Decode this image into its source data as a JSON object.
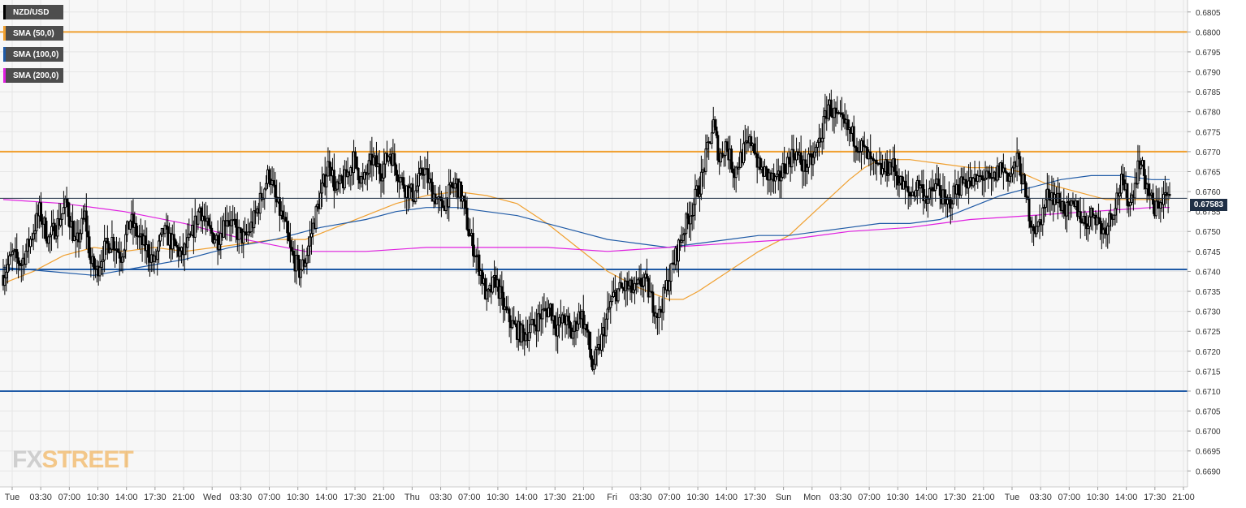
{
  "legend": [
    {
      "label": "NZD/USD",
      "color": "#000000"
    },
    {
      "label": "SMA (50,0)",
      "color": "#f0a030"
    },
    {
      "label": "SMA (100,0)",
      "color": "#1f5aa6"
    },
    {
      "label": "SMA (200,0)",
      "color": "#e020e0"
    }
  ],
  "price_tag": "0.67583",
  "watermark": {
    "prefix": "FX",
    "suffix": "STREET"
  },
  "chart_data": {
    "type": "candlestick",
    "symbol": "NZD/USD",
    "last_price": 0.67583,
    "ylim": [
      0.6686,
      0.6808
    ],
    "y_ticks": [
      "0.6690",
      "0.6695",
      "0.6700",
      "0.6705",
      "0.6710",
      "0.6715",
      "0.6720",
      "0.6725",
      "0.6730",
      "0.6735",
      "0.6740",
      "0.6745",
      "0.6750",
      "0.6755",
      "0.6760",
      "0.6765",
      "0.6770",
      "0.6775",
      "0.6780",
      "0.6785",
      "0.6790",
      "0.6795",
      "0.6800",
      "0.6805"
    ],
    "x_ticks": [
      "Tue",
      "03:30",
      "07:00",
      "10:30",
      "14:00",
      "17:30",
      "21:00",
      "Wed",
      "03:30",
      "07:00",
      "10:30",
      "14:00",
      "17:30",
      "21:00",
      "Thu",
      "03:30",
      "07:00",
      "10:30",
      "14:00",
      "17:30",
      "21:00",
      "Fri",
      "03:30",
      "07:00",
      "10:30",
      "14:00",
      "17:30",
      "Sun",
      "Mon",
      "03:30",
      "07:00",
      "10:30",
      "14:00",
      "17:30",
      "21:00",
      "Tue",
      "03:30",
      "07:00",
      "10:30",
      "14:00",
      "17:30",
      "21:00"
    ],
    "horizontal_levels": [
      {
        "value": 0.68,
        "color": "#f0a030"
      },
      {
        "value": 0.677,
        "color": "#f0a030"
      },
      {
        "value": 0.67405,
        "color": "#1f5aa6"
      },
      {
        "value": 0.671,
        "color": "#1f5aa6"
      }
    ],
    "close_path": [
      [
        0,
        0.6739
      ],
      [
        6,
        0.6744
      ],
      [
        12,
        0.6742
      ],
      [
        18,
        0.6748
      ],
      [
        24,
        0.6755
      ],
      [
        30,
        0.6748
      ],
      [
        36,
        0.6752
      ],
      [
        42,
        0.6757
      ],
      [
        48,
        0.6746
      ],
      [
        54,
        0.6754
      ],
      [
        58,
        0.6742
      ],
      [
        62,
        0.674
      ],
      [
        66,
        0.6745
      ],
      [
        72,
        0.6748
      ],
      [
        78,
        0.6744
      ],
      [
        84,
        0.6753
      ],
      [
        90,
        0.6748
      ],
      [
        96,
        0.6745
      ],
      [
        100,
        0.6742
      ],
      [
        106,
        0.675
      ],
      [
        112,
        0.6747
      ],
      [
        118,
        0.6744
      ],
      [
        124,
        0.6748
      ],
      [
        130,
        0.6756
      ],
      [
        136,
        0.675
      ],
      [
        142,
        0.6748
      ],
      [
        148,
        0.6754
      ],
      [
        154,
        0.675
      ],
      [
        160,
        0.6748
      ],
      [
        166,
        0.6753
      ],
      [
        172,
        0.676
      ],
      [
        176,
        0.6765
      ],
      [
        180,
        0.6758
      ],
      [
        186,
        0.6752
      ],
      [
        190,
        0.6745
      ],
      [
        196,
        0.674
      ],
      [
        200,
        0.6743
      ],
      [
        206,
        0.6753
      ],
      [
        212,
        0.6762
      ],
      [
        216,
        0.6768
      ],
      [
        220,
        0.676
      ],
      [
        226,
        0.6763
      ],
      [
        232,
        0.6768
      ],
      [
        238,
        0.6762
      ],
      [
        244,
        0.6768
      ],
      [
        250,
        0.6765
      ],
      [
        256,
        0.677
      ],
      [
        262,
        0.6764
      ],
      [
        266,
        0.6761
      ],
      [
        272,
        0.6759
      ],
      [
        278,
        0.6766
      ],
      [
        284,
        0.676
      ],
      [
        290,
        0.6756
      ],
      [
        296,
        0.676
      ],
      [
        300,
        0.6762
      ],
      [
        304,
        0.6758
      ],
      [
        308,
        0.675
      ],
      [
        312,
        0.6745
      ],
      [
        316,
        0.674
      ],
      [
        320,
        0.6733
      ],
      [
        326,
        0.6738
      ],
      [
        332,
        0.673
      ],
      [
        338,
        0.6726
      ],
      [
        344,
        0.6724
      ],
      [
        350,
        0.6726
      ],
      [
        356,
        0.6729
      ],
      [
        362,
        0.6731
      ],
      [
        366,
        0.6726
      ],
      [
        372,
        0.6728
      ],
      [
        376,
        0.6724
      ],
      [
        382,
        0.673
      ],
      [
        386,
        0.6725
      ],
      [
        390,
        0.6716
      ],
      [
        394,
        0.672
      ],
      [
        398,
        0.6726
      ],
      [
        402,
        0.6732
      ],
      [
        406,
        0.6735
      ],
      [
        412,
        0.6736
      ],
      [
        418,
        0.6735
      ],
      [
        424,
        0.6738
      ],
      [
        430,
        0.6732
      ],
      [
        434,
        0.6729
      ],
      [
        438,
        0.6735
      ],
      [
        442,
        0.674
      ],
      [
        446,
        0.6745
      ],
      [
        450,
        0.675
      ],
      [
        456,
        0.6756
      ],
      [
        462,
        0.6763
      ],
      [
        466,
        0.677
      ],
      [
        470,
        0.6777
      ],
      [
        474,
        0.6768
      ],
      [
        478,
        0.6772
      ],
      [
        484,
        0.6765
      ],
      [
        490,
        0.677
      ],
      [
        496,
        0.6773
      ],
      [
        500,
        0.6766
      ],
      [
        506,
        0.6764
      ],
      [
        512,
        0.6762
      ],
      [
        518,
        0.6767
      ],
      [
        524,
        0.677
      ],
      [
        530,
        0.6766
      ],
      [
        536,
        0.6768
      ],
      [
        542,
        0.6775
      ],
      [
        546,
        0.6782
      ],
      [
        552,
        0.6778
      ],
      [
        558,
        0.6776
      ],
      [
        564,
        0.6773
      ],
      [
        570,
        0.677
      ],
      [
        576,
        0.6766
      ],
      [
        582,
        0.6765
      ],
      [
        588,
        0.6767
      ],
      [
        594,
        0.6762
      ],
      [
        600,
        0.6759
      ],
      [
        606,
        0.6762
      ],
      [
        612,
        0.6758
      ],
      [
        618,
        0.6762
      ],
      [
        624,
        0.6756
      ],
      [
        630,
        0.676
      ],
      [
        636,
        0.6763
      ],
      [
        642,
        0.6762
      ],
      [
        648,
        0.6764
      ],
      [
        654,
        0.6762
      ],
      [
        660,
        0.6766
      ],
      [
        666,
        0.6764
      ],
      [
        672,
        0.6768
      ],
      [
        676,
        0.676
      ],
      [
        680,
        0.6753
      ],
      [
        684,
        0.675
      ],
      [
        688,
        0.6755
      ],
      [
        692,
        0.676
      ],
      [
        698,
        0.6758
      ],
      [
        704,
        0.6755
      ],
      [
        710,
        0.6756
      ],
      [
        716,
        0.6752
      ],
      [
        722,
        0.6755
      ],
      [
        728,
        0.675
      ],
      [
        734,
        0.6755
      ],
      [
        740,
        0.6762
      ],
      [
        746,
        0.6757
      ],
      [
        752,
        0.6768
      ],
      [
        758,
        0.676
      ],
      [
        762,
        0.6755
      ],
      [
        766,
        0.6758
      ],
      [
        770,
        0.6759
      ],
      [
        772,
        0.6758
      ]
    ],
    "series": [
      {
        "name": "SMA (50,0)",
        "color": "#f0a030",
        "points": [
          [
            0,
            0.6737
          ],
          [
            20,
            0.674
          ],
          [
            40,
            0.6744
          ],
          [
            60,
            0.6746
          ],
          [
            80,
            0.6745
          ],
          [
            100,
            0.6746
          ],
          [
            120,
            0.6745
          ],
          [
            140,
            0.6746
          ],
          [
            160,
            0.6747
          ],
          [
            180,
            0.6748
          ],
          [
            200,
            0.6748
          ],
          [
            220,
            0.6751
          ],
          [
            240,
            0.6754
          ],
          [
            260,
            0.6757
          ],
          [
            280,
            0.6759
          ],
          [
            300,
            0.676
          ],
          [
            320,
            0.6759
          ],
          [
            340,
            0.6757
          ],
          [
            360,
            0.6752
          ],
          [
            380,
            0.6746
          ],
          [
            400,
            0.674
          ],
          [
            420,
            0.6736
          ],
          [
            440,
            0.6733
          ],
          [
            450,
            0.6733
          ],
          [
            460,
            0.6735
          ],
          [
            480,
            0.674
          ],
          [
            500,
            0.6745
          ],
          [
            520,
            0.6749
          ],
          [
            540,
            0.6756
          ],
          [
            560,
            0.6763
          ],
          [
            570,
            0.6766
          ],
          [
            580,
            0.6768
          ],
          [
            600,
            0.6768
          ],
          [
            620,
            0.6767
          ],
          [
            640,
            0.6766
          ],
          [
            660,
            0.6766
          ],
          [
            672,
            0.6765
          ],
          [
            690,
            0.6762
          ],
          [
            710,
            0.676
          ],
          [
            730,
            0.6758
          ],
          [
            750,
            0.6758
          ],
          [
            772,
            0.6758
          ]
        ]
      },
      {
        "name": "SMA (100,0)",
        "color": "#1f5aa6",
        "points": [
          [
            0,
            0.6741
          ],
          [
            30,
            0.674
          ],
          [
            60,
            0.6739
          ],
          [
            90,
            0.6741
          ],
          [
            120,
            0.6743
          ],
          [
            150,
            0.6746
          ],
          [
            180,
            0.6748
          ],
          [
            210,
            0.6751
          ],
          [
            240,
            0.6753
          ],
          [
            260,
            0.6755
          ],
          [
            280,
            0.6756
          ],
          [
            300,
            0.6756
          ],
          [
            320,
            0.6755
          ],
          [
            340,
            0.6754
          ],
          [
            360,
            0.6752
          ],
          [
            380,
            0.675
          ],
          [
            400,
            0.6748
          ],
          [
            420,
            0.6747
          ],
          [
            440,
            0.6746
          ],
          [
            460,
            0.6747
          ],
          [
            480,
            0.6748
          ],
          [
            500,
            0.6749
          ],
          [
            520,
            0.6749
          ],
          [
            540,
            0.675
          ],
          [
            560,
            0.6751
          ],
          [
            580,
            0.6752
          ],
          [
            600,
            0.6752
          ],
          [
            620,
            0.6753
          ],
          [
            640,
            0.6756
          ],
          [
            660,
            0.6759
          ],
          [
            680,
            0.6761
          ],
          [
            700,
            0.6763
          ],
          [
            720,
            0.6764
          ],
          [
            740,
            0.6764
          ],
          [
            760,
            0.6763
          ],
          [
            772,
            0.6763
          ]
        ]
      },
      {
        "name": "SMA (200,0)",
        "color": "#e020e0",
        "points": [
          [
            0,
            0.6758
          ],
          [
            40,
            0.6757
          ],
          [
            80,
            0.6755
          ],
          [
            120,
            0.6752
          ],
          [
            160,
            0.6748
          ],
          [
            200,
            0.6745
          ],
          [
            240,
            0.6745
          ],
          [
            280,
            0.6746
          ],
          [
            320,
            0.6746
          ],
          [
            360,
            0.6746
          ],
          [
            400,
            0.6745
          ],
          [
            440,
            0.6746
          ],
          [
            480,
            0.6747
          ],
          [
            520,
            0.6748
          ],
          [
            560,
            0.675
          ],
          [
            600,
            0.6751
          ],
          [
            640,
            0.6753
          ],
          [
            680,
            0.6754
          ],
          [
            720,
            0.6755
          ],
          [
            760,
            0.6756
          ],
          [
            772,
            0.6756
          ]
        ]
      }
    ]
  }
}
